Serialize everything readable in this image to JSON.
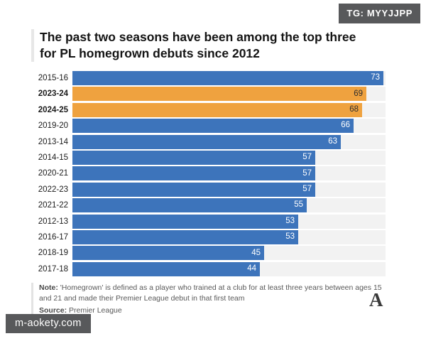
{
  "page": {
    "badge": "TG: MYYJJPP",
    "watermark": "m-aokety.com",
    "logo_letter": "A"
  },
  "title": {
    "lines": [
      "The past two seasons have been among the top three",
      "for PL homegrown debuts since 2012"
    ]
  },
  "chart_data": {
    "type": "bar",
    "orientation": "horizontal",
    "title": "The past two seasons have been among the top three for PL homegrown debuts since 2012",
    "xlabel": "",
    "ylabel": "",
    "categories": [
      "2015-16",
      "2023-24",
      "2024-25",
      "2019-20",
      "2013-14",
      "2014-15",
      "2020-21",
      "2022-23",
      "2021-22",
      "2012-13",
      "2016-17",
      "2018-19",
      "2017-18"
    ],
    "values": [
      73,
      69,
      68,
      66,
      63,
      57,
      57,
      57,
      55,
      53,
      53,
      45,
      44
    ],
    "highlighted": [
      "2023-24",
      "2024-25"
    ],
    "axis_max": 73.5,
    "grid": false,
    "legend": "none",
    "value_labels": "inside-end",
    "colors": {
      "bar": "#3d74bb",
      "highlight": "#efa23f",
      "track": "#f2f2f2",
      "value_on_bar": "#ffffff",
      "value_on_highlight": "#2e2e2e"
    }
  },
  "footer": {
    "note_label": "Note:",
    "note_text": "'Homegrown' is defined as a player who trained at a club for at least three years between ages 15 and 21 and made their Premier League debut in that first team",
    "source_label": "Source:",
    "source_text": "Premier League"
  }
}
